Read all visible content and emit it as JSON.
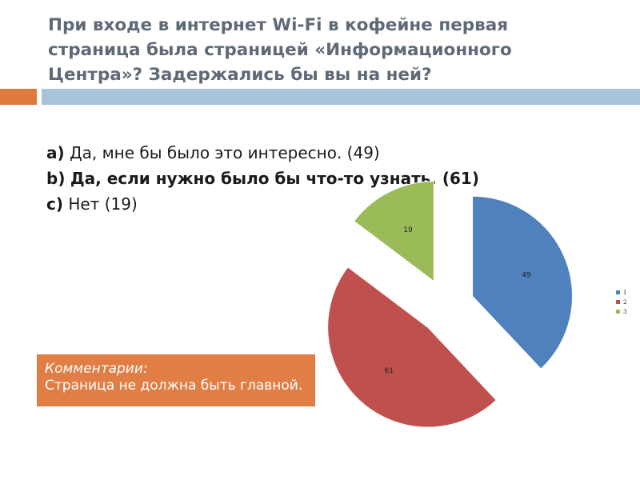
{
  "slide": {
    "title": "При входе в интернет Wi-Fi в кофейне первая страница была страницей «Информационного Центра»? Задержались бы вы на ней?",
    "colors": {
      "accent_bar": "#e07a3a",
      "header_bar": "#a9c4d8",
      "comment_box": "#e07e45"
    }
  },
  "answers": [
    {
      "key": "a)",
      "text": "Да, мне бы было это интересно. (49)"
    },
    {
      "key": "b)",
      "text": "Да, если нужно было бы что-то узнать. (61)"
    },
    {
      "key": "c)",
      "text": "Нет (19)"
    }
  ],
  "comment": {
    "label": "Комментарии:",
    "text": "Страница не должна быть главной."
  },
  "chart_data": {
    "type": "pie",
    "exploded": true,
    "values": [
      49,
      61,
      19
    ],
    "slice_labels": [
      "49",
      "61",
      "19"
    ],
    "colors": [
      "#4f81bd",
      "#c0504d",
      "#9bbb59"
    ],
    "legend": [
      "1",
      "2",
      "3"
    ],
    "legend_placement": "right"
  }
}
